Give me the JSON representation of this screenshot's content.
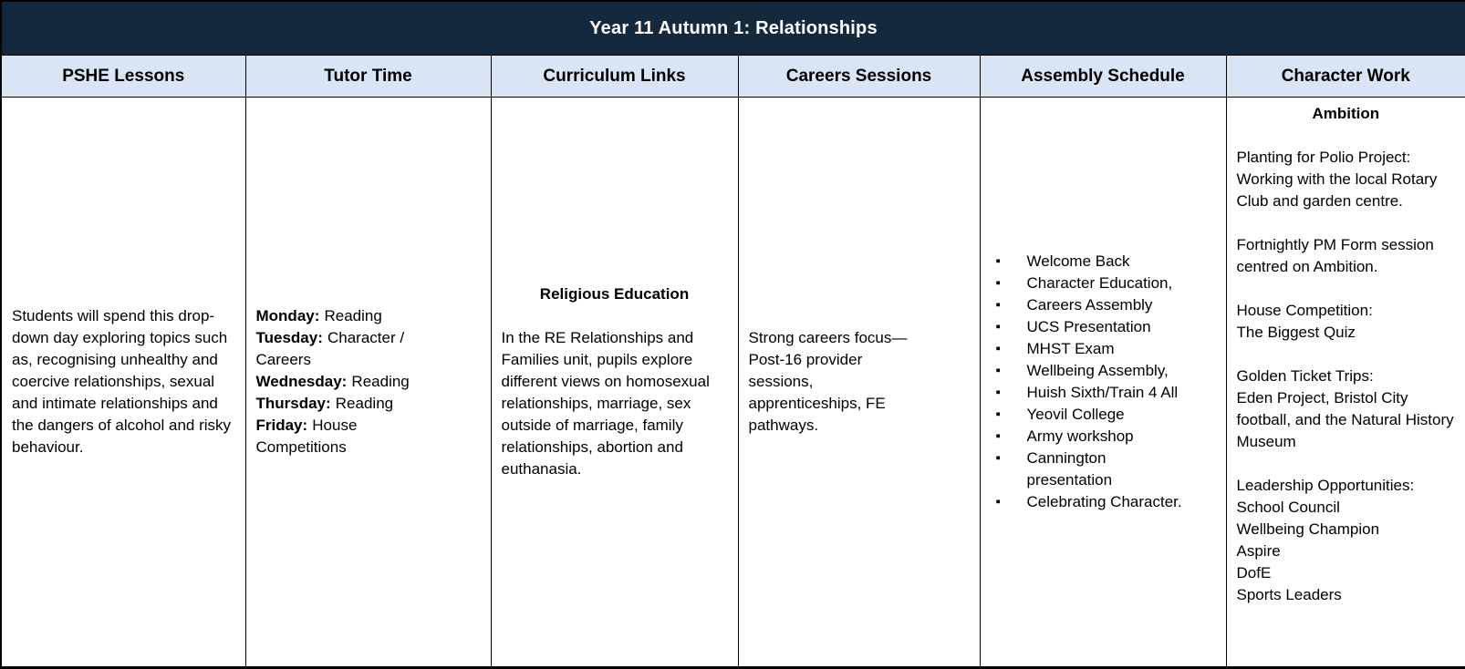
{
  "colors": {
    "title_bg": "#14293E",
    "title_text": "#FFFFFF",
    "header_bg": "#D9E5F4",
    "border": "#000000",
    "body_text": "#000000"
  },
  "icons": {
    "bullet": "▪"
  },
  "title": "Year 11 Autumn 1: Relationships",
  "headers": [
    "PSHE Lessons",
    "Tutor Time",
    "Curriculum Links",
    "Careers Sessions",
    "Assembly Schedule",
    "Character Work"
  ],
  "pshe": {
    "body": "Students will spend this drop-down day exploring topics such as, recognising unhealthy and coercive relationships, sexual and intimate relationships and the dangers of alcohol and risky behaviour."
  },
  "tutor_time": {
    "lines": [
      {
        "day": "Monday:",
        "activity": "Reading"
      },
      {
        "day": "Tuesday:",
        "activity": "Character / Careers"
      },
      {
        "day": "Wednesday:",
        "activity": "Reading"
      },
      {
        "day": "Thursday:",
        "activity": "Reading"
      },
      {
        "day": "Friday:",
        "activity": "House Competitions"
      }
    ]
  },
  "curriculum": {
    "heading": "Religious Education",
    "body": "In the RE Relationships and Families unit, pupils explore different views on homosexual relationships, marriage, sex outside of marriage, family relationships, abortion and euthanasia."
  },
  "careers": {
    "body": "Strong careers focus—\nPost-16 provider\nsessions,\napprenticeships, FE\npathways."
  },
  "assembly": {
    "items": [
      "Welcome Back",
      "Character Education,",
      "Careers Assembly",
      "UCS Presentation",
      "MHST Exam",
      "Wellbeing Assembly,",
      "Huish Sixth/Train 4 All",
      "Yeovil College",
      "Army workshop",
      "Cannington\npresentation",
      "Celebrating Character."
    ]
  },
  "character": {
    "heading": "Ambition",
    "paragraphs": [
      "Planting for Polio Project: Working with the local Rotary Club and garden centre.",
      "Fortnightly PM Form session centred on Ambition.",
      "House Competition:\nThe Biggest Quiz",
      "Golden Ticket Trips:\nEden Project, Bristol City football, and the Natural History Museum",
      "Leadership Opportunities:\nSchool Council\nWellbeing Champion\nAspire\nDofE\nSports Leaders"
    ]
  }
}
